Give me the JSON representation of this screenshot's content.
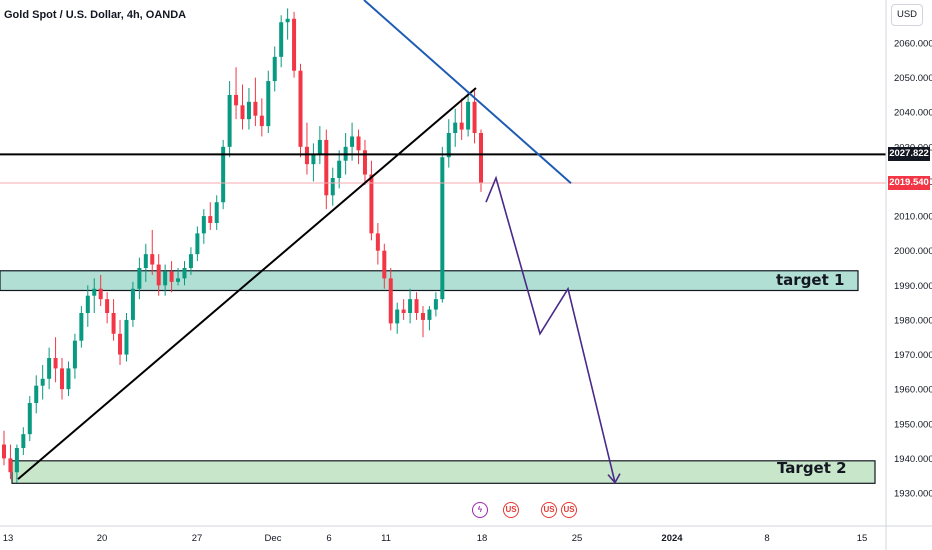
{
  "header": {
    "title": "Gold Spot / U.S. Dollar, 4h, OANDA",
    "currency": "USD"
  },
  "price_axis": {
    "ticks": [
      "2060.000",
      "2050.000",
      "2040.000",
      "2030.000",
      "2020.000",
      "2010.000",
      "2000.000",
      "1990.000",
      "1980.000",
      "1970.000",
      "1960.000",
      "1950.000",
      "1940.000",
      "1930.000"
    ],
    "tick_values": [
      2060,
      2050,
      2040,
      2030,
      2020,
      2010,
      2000,
      1990,
      1980,
      1970,
      1960,
      1950,
      1940,
      1930
    ],
    "horizontal_line_tag": "2027.822",
    "last_price_tag": "2019.540",
    "colors": {
      "line_tag": "#131722",
      "last_price_tag": "#f23645"
    }
  },
  "time_axis": {
    "ticks": [
      "13",
      "20",
      "27",
      "Dec",
      "6",
      "11",
      "18",
      "25",
      "2024",
      "8",
      "15"
    ],
    "bold": [
      "2024"
    ]
  },
  "zones": [
    {
      "label": "target 1",
      "low": 1988.5,
      "high": 1994.2,
      "color": "#b2dfd4"
    },
    {
      "label": "Target 2",
      "low": 1932.8,
      "high": 1939.3,
      "color": "#c8e6c9"
    }
  ],
  "events": [
    {
      "icon": "lightning-icon",
      "glyph": "ϟ"
    },
    {
      "icon": "us-flag-icon",
      "glyph": "US"
    },
    {
      "icon": "us-flag-icon",
      "glyph": "US"
    },
    {
      "icon": "us-flag-icon",
      "glyph": "US"
    }
  ],
  "chart_data": {
    "type": "candlestick",
    "title": "Gold Spot / U.S. Dollar, 4h, OANDA",
    "ylim": [
      1926,
      2069
    ],
    "x_range": [
      "Nov 13",
      "Jan 17"
    ],
    "horizontal_line": 2027.822,
    "last_price": 2019.54,
    "up_color": "#089981",
    "down_color": "#f23645",
    "candles": [
      [
        1944,
        1948,
        1938,
        1940
      ],
      [
        1940,
        1944,
        1934,
        1936
      ],
      [
        1936,
        1944,
        1933,
        1943
      ],
      [
        1943,
        1949,
        1941,
        1947
      ],
      [
        1947,
        1958,
        1945,
        1956
      ],
      [
        1956,
        1964,
        1953,
        1961
      ],
      [
        1961,
        1967,
        1957,
        1963
      ],
      [
        1963,
        1972,
        1960,
        1969
      ],
      [
        1969,
        1975,
        1962,
        1966
      ],
      [
        1966,
        1969,
        1957,
        1960
      ],
      [
        1960,
        1968,
        1958,
        1966
      ],
      [
        1966,
        1976,
        1963,
        1974
      ],
      [
        1974,
        1984,
        1972,
        1982
      ],
      [
        1982,
        1990,
        1978,
        1987
      ],
      [
        1987,
        1992,
        1982,
        1989
      ],
      [
        1989,
        1993,
        1984,
        1986
      ],
      [
        1986,
        1988,
        1979,
        1982
      ],
      [
        1982,
        1986,
        1974,
        1976
      ],
      [
        1976,
        1980,
        1967,
        1970
      ],
      [
        1970,
        1982,
        1968,
        1980
      ],
      [
        1980,
        1991,
        1978,
        1989
      ],
      [
        1989,
        1998,
        1986,
        1995
      ],
      [
        1995,
        2002,
        1991,
        1999
      ],
      [
        1999,
        2006,
        1993,
        1996
      ],
      [
        1996,
        1999,
        1987,
        1990
      ],
      [
        1990,
        1996,
        1987,
        1994
      ],
      [
        1994,
        1997,
        1988,
        1991
      ],
      [
        1991,
        1995,
        1990,
        1992
      ],
      [
        1992,
        1997,
        1990,
        1995
      ],
      [
        1995,
        2001,
        1993,
        1999
      ],
      [
        1999,
        2007,
        1997,
        2005
      ],
      [
        2005,
        2012,
        2002,
        2010
      ],
      [
        2010,
        2014,
        2006,
        2008
      ],
      [
        2008,
        2016,
        2006,
        2014
      ],
      [
        2014,
        2032,
        2012,
        2030
      ],
      [
        2030,
        2049,
        2027,
        2045
      ],
      [
        2045,
        2053,
        2038,
        2042
      ],
      [
        2042,
        2048,
        2035,
        2038
      ],
      [
        2038,
        2047,
        2035,
        2043
      ],
      [
        2043,
        2050,
        2036,
        2039
      ],
      [
        2039,
        2044,
        2033,
        2036
      ],
      [
        2036,
        2052,
        2034,
        2049
      ],
      [
        2049,
        2059,
        2046,
        2056
      ],
      [
        2056,
        2068,
        2053,
        2066
      ],
      [
        2066,
        2070,
        2061,
        2067
      ],
      [
        2067,
        2069,
        2050,
        2052
      ],
      [
        2052,
        2054,
        2027,
        2030
      ],
      [
        2030,
        2037,
        2022,
        2025
      ],
      [
        2025,
        2031,
        2020,
        2028
      ],
      [
        2028,
        2036,
        2025,
        2032
      ],
      [
        2032,
        2035,
        2012,
        2016
      ],
      [
        2016,
        2024,
        2013,
        2021
      ],
      [
        2021,
        2029,
        2018,
        2026
      ],
      [
        2026,
        2034,
        2022,
        2030
      ],
      [
        2030,
        2037,
        2026,
        2033
      ],
      [
        2033,
        2035,
        2025,
        2029
      ],
      [
        2029,
        2032,
        2019,
        2022
      ],
      [
        2022,
        2026,
        2003,
        2005
      ],
      [
        2005,
        2008,
        1996,
        2000
      ],
      [
        2000,
        2002,
        1989,
        1992
      ],
      [
        1992,
        1995,
        1977,
        1979
      ],
      [
        1979,
        1985,
        1976,
        1983
      ],
      [
        1983,
        1986,
        1980,
        1982
      ],
      [
        1982,
        1989,
        1979,
        1986
      ],
      [
        1986,
        1988,
        1980,
        1982
      ],
      [
        1982,
        1984,
        1975,
        1980
      ],
      [
        1980,
        1984,
        1977,
        1983
      ],
      [
        1983,
        1988,
        1981,
        1986
      ],
      [
        1986,
        2030,
        1985,
        2027
      ],
      [
        2027,
        2038,
        2024,
        2034
      ],
      [
        2034,
        2041,
        2030,
        2037
      ],
      [
        2037,
        2044,
        2032,
        2035
      ],
      [
        2035,
        2046,
        2033,
        2043
      ],
      [
        2043,
        2047,
        2031,
        2034
      ],
      [
        2034,
        2035,
        2017,
        2019.5
      ]
    ],
    "lines": [
      {
        "name": "ascending trendline",
        "color": "#000000",
        "from": {
          "x": "Nov 14",
          "y": 1934
        },
        "to": {
          "x": "Dec 17",
          "y": 2047
        }
      },
      {
        "name": "descending trendline",
        "color": "#1e5cb3",
        "from": {
          "x": "Dec 8",
          "y": 2071
        },
        "to": {
          "x": "Dec 22",
          "y": 2019
        }
      }
    ],
    "projection_path": [
      2014,
      2021,
      1991,
      1976,
      1989,
      1933
    ],
    "annotations": [
      "target 1",
      "Target 2"
    ]
  }
}
